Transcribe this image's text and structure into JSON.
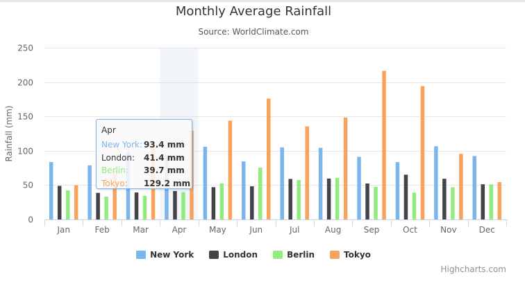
{
  "chart_data": {
    "type": "bar",
    "title": "Monthly Average Rainfall",
    "subtitle": "Source: WorldClimate.com",
    "ylabel": "Rainfall (mm)",
    "xlabel": "",
    "ylim": [
      0,
      250
    ],
    "yticks": [
      0,
      50,
      100,
      150,
      200,
      250
    ],
    "grid": true,
    "legend_position": "bottom-center",
    "categories": [
      "Jan",
      "Feb",
      "Mar",
      "Apr",
      "May",
      "Jun",
      "Jul",
      "Aug",
      "Sep",
      "Oct",
      "Nov",
      "Dec"
    ],
    "series": [
      {
        "name": "New York",
        "color": "#7cb5ec",
        "values": [
          83.6,
          78.8,
          98.5,
          93.4,
          106.0,
          84.5,
          105.0,
          104.3,
          91.2,
          83.5,
          106.6,
          92.3
        ]
      },
      {
        "name": "London",
        "color": "#434348",
        "values": [
          48.9,
          38.8,
          39.3,
          41.4,
          47.0,
          48.3,
          59.0,
          59.6,
          52.4,
          65.2,
          59.3,
          51.2
        ]
      },
      {
        "name": "Berlin",
        "color": "#90ed7d",
        "values": [
          42.4,
          33.2,
          34.5,
          39.7,
          52.6,
          75.5,
          57.4,
          60.4,
          47.6,
          39.1,
          46.8,
          51.1
        ]
      },
      {
        "name": "Tokyo",
        "color": "#f7a35c",
        "values": [
          49.9,
          71.5,
          106.4,
          129.2,
          144.0,
          176.0,
          135.6,
          148.5,
          216.4,
          194.1,
          95.6,
          54.4
        ]
      }
    ],
    "highlighted_category": "Apr"
  },
  "tooltip": {
    "header": "Apr",
    "rows": [
      {
        "label": "New York:",
        "value": "93.4 mm",
        "color": "#7cb5ec"
      },
      {
        "label": "London:",
        "value": "41.4 mm",
        "color": "#333333"
      },
      {
        "label": "Berlin:",
        "value": "39.7 mm",
        "color": "#90ed7d"
      },
      {
        "label": "Tokyo:",
        "value": "129.2 mm",
        "color": "#f7a35c"
      }
    ]
  },
  "credits": "Highcharts.com"
}
